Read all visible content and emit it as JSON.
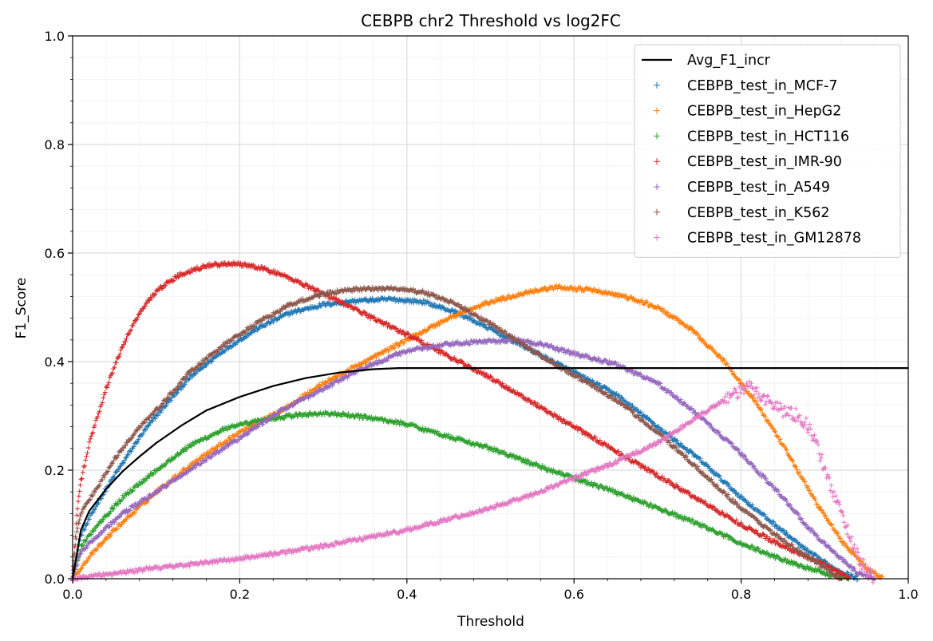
{
  "chart_data": {
    "type": "line",
    "title": "CEBPB chr2 Threshold vs log2FC",
    "xlabel": "Threshold",
    "ylabel": "F1_Score",
    "xlim": [
      0,
      1
    ],
    "ylim": [
      0,
      1
    ],
    "xticks": [
      "0.0",
      "0.2",
      "0.4",
      "0.6",
      "0.8",
      "1.0"
    ],
    "yticks": [
      "0.0",
      "0.2",
      "0.4",
      "0.6",
      "0.8",
      "1.0"
    ],
    "grid": true,
    "legend_position": "top-right",
    "series": [
      {
        "name": "Avg_F1_incr",
        "style": "line",
        "color": "#000000",
        "points": [
          [
            0.0,
            0.0
          ],
          [
            0.01,
            0.09
          ],
          [
            0.02,
            0.125
          ],
          [
            0.04,
            0.165
          ],
          [
            0.06,
            0.198
          ],
          [
            0.08,
            0.225
          ],
          [
            0.1,
            0.25
          ],
          [
            0.13,
            0.282
          ],
          [
            0.16,
            0.31
          ],
          [
            0.2,
            0.335
          ],
          [
            0.24,
            0.355
          ],
          [
            0.28,
            0.37
          ],
          [
            0.32,
            0.38
          ],
          [
            0.36,
            0.386
          ],
          [
            0.39,
            0.388
          ],
          [
            1.0,
            0.388
          ]
        ]
      },
      {
        "name": "CEBPB_test_in_MCF-7",
        "style": "marker",
        "color": "#1f77b4",
        "points": [
          [
            0.0,
            0.0
          ],
          [
            0.01,
            0.08
          ],
          [
            0.03,
            0.14
          ],
          [
            0.05,
            0.19
          ],
          [
            0.08,
            0.26
          ],
          [
            0.1,
            0.3
          ],
          [
            0.14,
            0.37
          ],
          [
            0.18,
            0.42
          ],
          [
            0.22,
            0.46
          ],
          [
            0.26,
            0.49
          ],
          [
            0.3,
            0.505
          ],
          [
            0.34,
            0.512
          ],
          [
            0.38,
            0.515
          ],
          [
            0.42,
            0.51
          ],
          [
            0.46,
            0.49
          ],
          [
            0.5,
            0.46
          ],
          [
            0.55,
            0.42
          ],
          [
            0.6,
            0.38
          ],
          [
            0.65,
            0.34
          ],
          [
            0.7,
            0.28
          ],
          [
            0.75,
            0.22
          ],
          [
            0.8,
            0.15
          ],
          [
            0.84,
            0.1
          ],
          [
            0.88,
            0.05
          ],
          [
            0.91,
            0.02
          ],
          [
            0.94,
            0.0
          ]
        ]
      },
      {
        "name": "CEBPB_test_in_HepG2",
        "style": "marker",
        "color": "#ff7f0e",
        "points": [
          [
            0.0,
            0.0
          ],
          [
            0.02,
            0.04
          ],
          [
            0.05,
            0.09
          ],
          [
            0.1,
            0.16
          ],
          [
            0.15,
            0.22
          ],
          [
            0.2,
            0.27
          ],
          [
            0.25,
            0.31
          ],
          [
            0.3,
            0.36
          ],
          [
            0.35,
            0.4
          ],
          [
            0.4,
            0.44
          ],
          [
            0.45,
            0.48
          ],
          [
            0.5,
            0.51
          ],
          [
            0.55,
            0.53
          ],
          [
            0.58,
            0.537
          ],
          [
            0.62,
            0.532
          ],
          [
            0.66,
            0.52
          ],
          [
            0.7,
            0.5
          ],
          [
            0.74,
            0.46
          ],
          [
            0.78,
            0.4
          ],
          [
            0.82,
            0.32
          ],
          [
            0.86,
            0.22
          ],
          [
            0.89,
            0.14
          ],
          [
            0.92,
            0.07
          ],
          [
            0.95,
            0.02
          ],
          [
            0.97,
            0.0
          ]
        ]
      },
      {
        "name": "CEBPB_test_in_HCT116",
        "style": "marker",
        "color": "#2ca02c",
        "points": [
          [
            0.0,
            0.0
          ],
          [
            0.01,
            0.06
          ],
          [
            0.03,
            0.1
          ],
          [
            0.06,
            0.15
          ],
          [
            0.1,
            0.2
          ],
          [
            0.14,
            0.245
          ],
          [
            0.18,
            0.275
          ],
          [
            0.22,
            0.29
          ],
          [
            0.26,
            0.3
          ],
          [
            0.3,
            0.305
          ],
          [
            0.35,
            0.298
          ],
          [
            0.4,
            0.285
          ],
          [
            0.45,
            0.262
          ],
          [
            0.5,
            0.24
          ],
          [
            0.55,
            0.212
          ],
          [
            0.6,
            0.185
          ],
          [
            0.65,
            0.16
          ],
          [
            0.7,
            0.13
          ],
          [
            0.75,
            0.1
          ],
          [
            0.8,
            0.065
          ],
          [
            0.85,
            0.035
          ],
          [
            0.9,
            0.01
          ],
          [
            0.93,
            0.0
          ]
        ]
      },
      {
        "name": "CEBPB_test_in_IMR-90",
        "style": "marker",
        "color": "#d62728",
        "points": [
          [
            0.0,
            0.0
          ],
          [
            0.005,
            0.12
          ],
          [
            0.01,
            0.18
          ],
          [
            0.02,
            0.25
          ],
          [
            0.04,
            0.35
          ],
          [
            0.06,
            0.43
          ],
          [
            0.08,
            0.49
          ],
          [
            0.1,
            0.53
          ],
          [
            0.13,
            0.562
          ],
          [
            0.16,
            0.577
          ],
          [
            0.19,
            0.58
          ],
          [
            0.22,
            0.575
          ],
          [
            0.25,
            0.56
          ],
          [
            0.28,
            0.54
          ],
          [
            0.32,
            0.51
          ],
          [
            0.36,
            0.48
          ],
          [
            0.4,
            0.45
          ],
          [
            0.45,
            0.41
          ],
          [
            0.5,
            0.37
          ],
          [
            0.55,
            0.325
          ],
          [
            0.6,
            0.28
          ],
          [
            0.65,
            0.235
          ],
          [
            0.7,
            0.19
          ],
          [
            0.75,
            0.145
          ],
          [
            0.8,
            0.1
          ],
          [
            0.85,
            0.06
          ],
          [
            0.9,
            0.025
          ],
          [
            0.93,
            0.0
          ]
        ]
      },
      {
        "name": "CEBPB_test_in_A549",
        "style": "marker",
        "color": "#9467bd",
        "points": [
          [
            0.0,
            0.0
          ],
          [
            0.01,
            0.05
          ],
          [
            0.03,
            0.08
          ],
          [
            0.06,
            0.12
          ],
          [
            0.1,
            0.16
          ],
          [
            0.15,
            0.21
          ],
          [
            0.2,
            0.26
          ],
          [
            0.25,
            0.31
          ],
          [
            0.3,
            0.35
          ],
          [
            0.35,
            0.39
          ],
          [
            0.4,
            0.42
          ],
          [
            0.45,
            0.432
          ],
          [
            0.5,
            0.438
          ],
          [
            0.53,
            0.44
          ],
          [
            0.56,
            0.432
          ],
          [
            0.6,
            0.415
          ],
          [
            0.65,
            0.395
          ],
          [
            0.7,
            0.36
          ],
          [
            0.75,
            0.3
          ],
          [
            0.8,
            0.23
          ],
          [
            0.85,
            0.15
          ],
          [
            0.88,
            0.095
          ],
          [
            0.91,
            0.05
          ],
          [
            0.94,
            0.01
          ],
          [
            0.96,
            0.0
          ]
        ]
      },
      {
        "name": "CEBPB_test_in_K562",
        "style": "marker",
        "color": "#8c564b",
        "points": [
          [
            0.0,
            0.0
          ],
          [
            0.005,
            0.09
          ],
          [
            0.01,
            0.12
          ],
          [
            0.03,
            0.17
          ],
          [
            0.05,
            0.22
          ],
          [
            0.08,
            0.28
          ],
          [
            0.1,
            0.31
          ],
          [
            0.14,
            0.38
          ],
          [
            0.18,
            0.43
          ],
          [
            0.22,
            0.47
          ],
          [
            0.26,
            0.505
          ],
          [
            0.3,
            0.525
          ],
          [
            0.34,
            0.533
          ],
          [
            0.38,
            0.535
          ],
          [
            0.42,
            0.528
          ],
          [
            0.46,
            0.505
          ],
          [
            0.5,
            0.47
          ],
          [
            0.55,
            0.42
          ],
          [
            0.6,
            0.375
          ],
          [
            0.65,
            0.33
          ],
          [
            0.7,
            0.27
          ],
          [
            0.75,
            0.2
          ],
          [
            0.8,
            0.13
          ],
          [
            0.85,
            0.07
          ],
          [
            0.89,
            0.03
          ],
          [
            0.92,
            0.0
          ]
        ]
      },
      {
        "name": "CEBPB_test_in_GM12878",
        "style": "marker",
        "color": "#e377c2",
        "points": [
          [
            0.0,
            0.0
          ],
          [
            0.05,
            0.01
          ],
          [
            0.1,
            0.02
          ],
          [
            0.15,
            0.028
          ],
          [
            0.2,
            0.037
          ],
          [
            0.25,
            0.048
          ],
          [
            0.3,
            0.06
          ],
          [
            0.35,
            0.075
          ],
          [
            0.4,
            0.09
          ],
          [
            0.45,
            0.11
          ],
          [
            0.5,
            0.13
          ],
          [
            0.55,
            0.155
          ],
          [
            0.6,
            0.185
          ],
          [
            0.65,
            0.215
          ],
          [
            0.7,
            0.25
          ],
          [
            0.72,
            0.27
          ],
          [
            0.75,
            0.3
          ],
          [
            0.78,
            0.33
          ],
          [
            0.8,
            0.345
          ],
          [
            0.81,
            0.355
          ],
          [
            0.83,
            0.33
          ],
          [
            0.85,
            0.31
          ],
          [
            0.87,
            0.3
          ],
          [
            0.88,
            0.28
          ],
          [
            0.89,
            0.25
          ],
          [
            0.9,
            0.2
          ],
          [
            0.91,
            0.16
          ],
          [
            0.92,
            0.12
          ],
          [
            0.93,
            0.08
          ],
          [
            0.94,
            0.04
          ],
          [
            0.95,
            0.015
          ],
          [
            0.96,
            0.0
          ]
        ]
      }
    ]
  }
}
